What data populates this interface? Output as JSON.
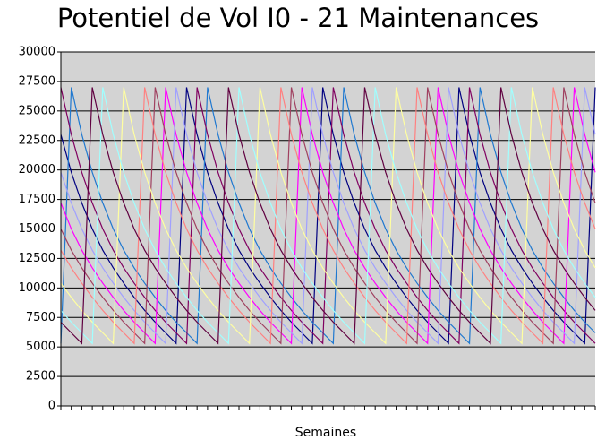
{
  "chart_data": {
    "type": "line",
    "title": "Potentiel de Vol I0 - 21 Maintenances",
    "x_label": "Semaines",
    "categories": [
      null,
      null,
      null,
      null,
      null,
      null,
      null,
      null,
      null,
      null,
      null,
      null,
      null,
      null,
      null,
      null,
      null,
      null,
      null,
      null,
      null,
      null,
      null,
      null,
      null,
      null,
      null,
      null,
      null,
      null,
      null,
      null,
      null,
      null,
      null,
      null,
      null,
      null,
      null,
      null,
      null,
      null,
      null,
      null,
      null,
      null,
      null,
      null,
      null,
      null,
      null,
      null
    ],
    "ylim": [
      0,
      30000
    ],
    "yticks": [
      0,
      2500,
      5000,
      7500,
      10000,
      12500,
      15000,
      17500,
      20000,
      22500,
      25000,
      27500,
      30000
    ],
    "grid": true,
    "series": [
      {
        "color": "#000080",
        "values": [
          23000,
          19800,
          17200,
          15000,
          13200,
          11700,
          10400,
          9200,
          8100,
          7100,
          6200,
          5300,
          27000,
          23000,
          19800,
          17200,
          15000,
          13200,
          11700,
          10400,
          9200,
          8100,
          7100,
          6200,
          5300,
          27000,
          23000,
          19800,
          17200,
          15000,
          13200,
          11700,
          10400,
          9200,
          8100,
          7100,
          6200,
          5300,
          27000,
          23000,
          19800,
          17200,
          15000,
          13200,
          11700,
          10400,
          9200,
          8100,
          7100,
          6200,
          5300,
          27000
        ]
      },
      {
        "color": "#1f78d0",
        "values": [
          5300,
          27000,
          23000,
          19800,
          17200,
          15000,
          13200,
          11700,
          10400,
          9200,
          8100,
          7100,
          6200,
          5300,
          27000,
          23000,
          19800,
          17200,
          15000,
          13200,
          11700,
          10400,
          9200,
          8100,
          7100,
          6200,
          5300,
          27000,
          23000,
          19800,
          17200,
          15000,
          13200,
          11700,
          10400,
          9200,
          8100,
          7100,
          6200,
          5300,
          27000,
          23000,
          19800,
          17200,
          15000,
          13200,
          11700,
          10400,
          9200,
          8100,
          7100,
          6200
        ]
      },
      {
        "color": "#800060",
        "values": [
          27000,
          23000,
          19800,
          17200,
          15000,
          13200,
          11700,
          10400,
          9200,
          8100,
          7100,
          6200,
          5300,
          27000,
          23000,
          19800,
          17200,
          15000,
          13200,
          11700,
          10400,
          9200,
          8100,
          7100,
          6200,
          5300,
          27000,
          23000,
          19800,
          17200,
          15000,
          13200,
          11700,
          10400,
          9200,
          8100,
          7100,
          6200,
          5300,
          27000,
          23000,
          19800,
          17200,
          15000,
          13200,
          11700,
          10400,
          9200,
          8100,
          7100,
          6200,
          5300
        ]
      },
      {
        "color": "#ff00ff",
        "values": [
          17200,
          15000,
          13200,
          11700,
          10400,
          9200,
          8100,
          7100,
          6200,
          5300,
          27000,
          23000,
          19800,
          17200,
          15000,
          13200,
          11700,
          10400,
          9200,
          8100,
          7100,
          6200,
          5300,
          27000,
          23000,
          19800,
          17200,
          15000,
          13200,
          11700,
          10400,
          9200,
          8100,
          7100,
          6200,
          5300,
          27000,
          23000,
          19800,
          17200,
          15000,
          13200,
          11700,
          10400,
          9200,
          8100,
          7100,
          6200,
          5300,
          27000,
          23000,
          19800
        ]
      },
      {
        "color": "#a0a0ff",
        "values": [
          19800,
          17200,
          15000,
          13200,
          11700,
          10400,
          9200,
          8100,
          7100,
          6200,
          5300,
          27000,
          23000,
          19800,
          17200,
          15000,
          13200,
          11700,
          10400,
          9200,
          8100,
          7100,
          6200,
          5300,
          27000,
          23000,
          19800,
          17200,
          15000,
          13200,
          11700,
          10400,
          9200,
          8100,
          7100,
          6200,
          5300,
          27000,
          23000,
          19800,
          17200,
          15000,
          13200,
          11700,
          10400,
          9200,
          8100,
          7100,
          6200,
          5300,
          27000,
          23000
        ]
      },
      {
        "color": "#a04060",
        "values": [
          15000,
          13200,
          11700,
          10400,
          9200,
          8100,
          7100,
          6200,
          5300,
          27000,
          23000,
          19800,
          17200,
          15000,
          13200,
          11700,
          10400,
          9200,
          8100,
          7100,
          6200,
          5300,
          27000,
          23000,
          19800,
          17200,
          15000,
          13200,
          11700,
          10400,
          9200,
          8100,
          7100,
          6200,
          5300,
          27000,
          23000,
          19800,
          17200,
          15000,
          13200,
          11700,
          10400,
          9200,
          8100,
          7100,
          6200,
          5300,
          27000,
          23000,
          19800,
          17200
        ]
      },
      {
        "color": "#ff8080",
        "values": [
          13200,
          11700,
          10400,
          9200,
          8100,
          7100,
          6200,
          5300,
          27000,
          23000,
          19800,
          17200,
          15000,
          13200,
          11700,
          10400,
          9200,
          8100,
          7100,
          6200,
          5300,
          27000,
          23000,
          19800,
          17200,
          15000,
          13200,
          11700,
          10400,
          9200,
          8100,
          7100,
          6200,
          5300,
          27000,
          23000,
          19800,
          17200,
          15000,
          13200,
          11700,
          10400,
          9200,
          8100,
          7100,
          6200,
          5300,
          27000,
          23000,
          19800,
          17200,
          15000
        ]
      },
      {
        "color": "#ffffa0",
        "values": [
          10400,
          9200,
          8100,
          7100,
          6200,
          5300,
          27000,
          23000,
          19800,
          17200,
          15000,
          13200,
          11700,
          10400,
          9200,
          8100,
          7100,
          6200,
          5300,
          27000,
          23000,
          19800,
          17200,
          15000,
          13200,
          11700,
          10400,
          9200,
          8100,
          7100,
          6200,
          5300,
          27000,
          23000,
          19800,
          17200,
          15000,
          13200,
          11700,
          10400,
          9200,
          8100,
          7100,
          6200,
          5300,
          27000,
          23000,
          19800,
          17200,
          15000,
          13200,
          11700
        ]
      },
      {
        "color": "#a0ffff",
        "values": [
          8100,
          7100,
          6200,
          5300,
          27000,
          23000,
          19800,
          17200,
          15000,
          13200,
          11700,
          10400,
          9200,
          8100,
          7100,
          6200,
          5300,
          27000,
          23000,
          19800,
          17200,
          15000,
          13200,
          11700,
          10400,
          9200,
          8100,
          7100,
          6200,
          5300,
          27000,
          23000,
          19800,
          17200,
          15000,
          13200,
          11700,
          10400,
          9200,
          8100,
          7100,
          6200,
          5300,
          27000,
          23000,
          19800,
          17200,
          15000,
          13200,
          11700,
          10400,
          9200
        ]
      },
      {
        "color": "#600040",
        "values": [
          7100,
          6200,
          5300,
          27000,
          23000,
          19800,
          17200,
          15000,
          13200,
          11700,
          10400,
          9200,
          8100,
          7100,
          6200,
          5300,
          27000,
          23000,
          19800,
          17200,
          15000,
          13200,
          11700,
          10400,
          9200,
          8100,
          7100,
          6200,
          5300,
          27000,
          23000,
          19800,
          17200,
          15000,
          13200,
          11700,
          10400,
          9200,
          8100,
          7100,
          6200,
          5300,
          27000,
          23000,
          19800,
          17200,
          15000,
          13200,
          11700,
          10400,
          9200,
          8100
        ]
      }
    ]
  }
}
